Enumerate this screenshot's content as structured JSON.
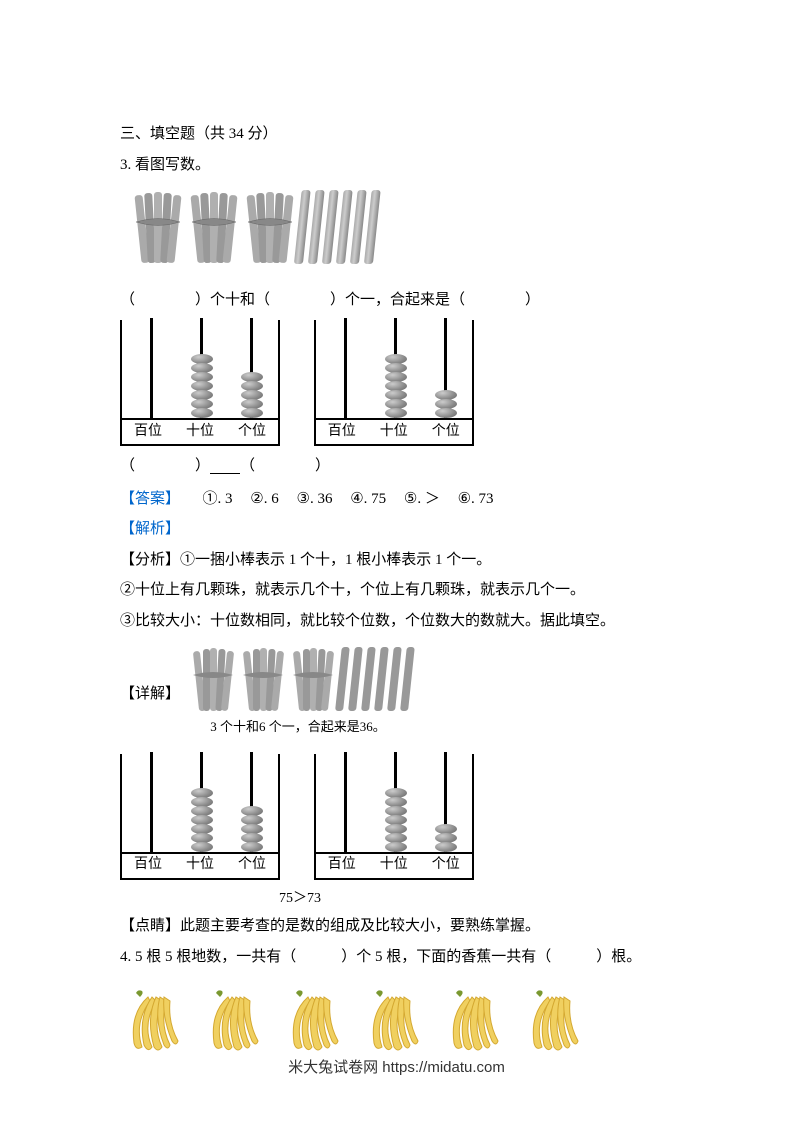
{
  "section_header": "三、填空题（共 34 分）",
  "q3": {
    "title": "3. 看图写数。",
    "sticks": {
      "bundles": 3,
      "singles": 6,
      "bundle_color": "#999999",
      "stick_color": "#999999"
    },
    "fill_text_1": "（　　　　）个十和（　　　　）个一，合起来是（　　　　）",
    "abacus1": {
      "labels": [
        "百位",
        "十位",
        "个位"
      ],
      "beads": [
        0,
        7,
        5
      ],
      "bead_color": "#888888"
    },
    "abacus2": {
      "labels": [
        "百位",
        "十位",
        "个位"
      ],
      "beads": [
        0,
        7,
        3
      ],
      "bead_color": "#888888"
    },
    "compare_text_left": "（　　　　）",
    "compare_text_right": "（　　　　）",
    "answer_label": "【答案】",
    "answers": [
      "①. 3",
      "②. 6",
      "③. 36",
      "④. 75",
      "⑤. ＞",
      "⑥. 73"
    ],
    "analysis_label": "【解析】",
    "analysis_title": "【分析】",
    "analysis_lines": [
      "①一捆小棒表示 1 个十，1 根小棒表示 1 个一。",
      "②十位上有几颗珠，就表示几个十，个位上有几颗珠，就表示几个一。",
      "③比较大小：十位数相同，就比较个位数，个位数大的数就大。据此填空。"
    ],
    "detail_label": "【详解】",
    "detail_caption1": "3 个十和6 个一，合起来是36。",
    "detail_caption2": "75＞73",
    "point_label": "【点睛】",
    "point_text": "此题主要考查的是数的组成及比较大小，要熟练掌握。"
  },
  "q4": {
    "text": "4. 5 根 5 根地数，一共有（　　　）个 5 根，下面的香蕉一共有（　　　）根。",
    "banana_groups": 6,
    "bananas_per_group": 5,
    "banana_color": "#f0d060",
    "banana_shadow": "#d4a830"
  },
  "footer": "米大兔试卷网 https://midatu.com",
  "colors": {
    "text": "#000000",
    "blue": "#0066cc",
    "background": "#ffffff"
  }
}
